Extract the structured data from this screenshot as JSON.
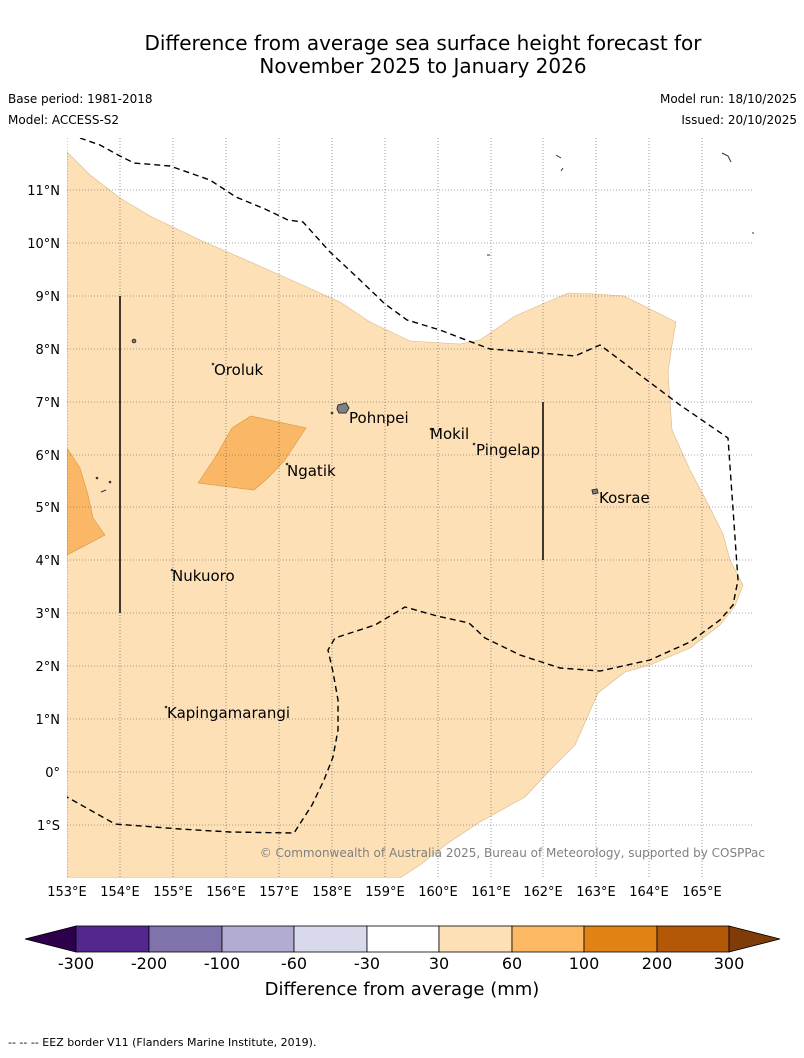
{
  "title_line1": "Difference from average sea surface height forecast for",
  "title_line2": "November 2025 to January 2026",
  "base_period": "Base period: 1981-2018",
  "model": "Model: ACCESS-S2",
  "model_run": "Model run: 18/10/2025",
  "issued": "Issued: 20/10/2025",
  "copyright": "© Commonwealth of Australia 2025, Bureau of Meteorology, supported by COSPPac",
  "footer": "-- -- -- EEZ border V11 (Flanders Marine Institute, 2019).",
  "map": {
    "lat_labels": [
      "11°N",
      "10°N",
      "9°N",
      "8°N",
      "7°N",
      "6°N",
      "5°N",
      "4°N",
      "3°N",
      "2°N",
      "1°N",
      "0°",
      "1°S"
    ],
    "lon_labels": [
      "153°E",
      "154°E",
      "155°E",
      "156°E",
      "157°E",
      "158°E",
      "159°E",
      "160°E",
      "161°E",
      "162°E",
      "163°E",
      "164°E",
      "165°E"
    ],
    "places": [
      "Oroluk",
      "Pohnpei",
      "Mokil",
      "Pingelap",
      "Ngatik",
      "Kosrae",
      "Nukuoro",
      "Kapingamarangi"
    ]
  },
  "colorbar": {
    "title": "Difference from average (mm)",
    "ticks": [
      "-300",
      "-200",
      "-100",
      "-60",
      "-30",
      "30",
      "60",
      "100",
      "200",
      "300"
    ],
    "colors": [
      "#54278f",
      "#8073ac",
      "#b2abd2",
      "#d8daeb",
      "#ffffff",
      "#fee0b6",
      "#fdb863",
      "#e08214",
      "#b35806"
    ],
    "low_color": "#2d004b",
    "high_color": "#7f3b08"
  },
  "colors": {
    "band_30_60": "#fde0b6",
    "band_60_100": "#fab866",
    "land": "#808080"
  }
}
